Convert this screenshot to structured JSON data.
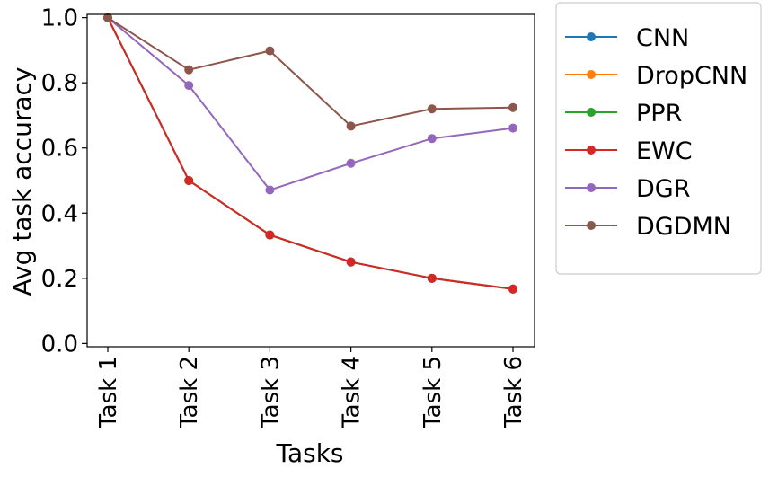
{
  "chart_data": {
    "type": "line",
    "categories": [
      "Task 1",
      "Task 2",
      "Task 3",
      "Task 4",
      "Task 5",
      "Task 6"
    ],
    "xlabel": "Tasks",
    "ylabel": "Avg task accuracy",
    "ylim": [
      -0.01,
      1.01
    ],
    "yticks": [
      "0.0",
      "0.2",
      "0.4",
      "0.6",
      "0.8",
      "1.0"
    ],
    "grid": false,
    "legend": "outside-right",
    "series": [
      {
        "name": "CNN",
        "color": "#1f77b4",
        "values": [
          1.0,
          0.5,
          0.333,
          0.25,
          0.2,
          0.167
        ]
      },
      {
        "name": "DropCNN",
        "color": "#ff7f0e",
        "values": [
          1.0,
          0.5,
          0.333,
          0.25,
          0.2,
          0.167
        ]
      },
      {
        "name": "PPR",
        "color": "#2ca02c",
        "values": [
          1.0,
          0.5,
          0.333,
          0.25,
          0.2,
          0.167
        ]
      },
      {
        "name": "EWC",
        "color": "#d62728",
        "values": [
          1.0,
          0.5,
          0.333,
          0.25,
          0.2,
          0.167
        ]
      },
      {
        "name": "DGR",
        "color": "#9467bd",
        "values": [
          1.0,
          0.792,
          0.471,
          0.553,
          0.629,
          0.661
        ]
      },
      {
        "name": "DGDMN",
        "color": "#8c564b",
        "values": [
          1.0,
          0.84,
          0.898,
          0.667,
          0.72,
          0.724
        ]
      }
    ]
  }
}
